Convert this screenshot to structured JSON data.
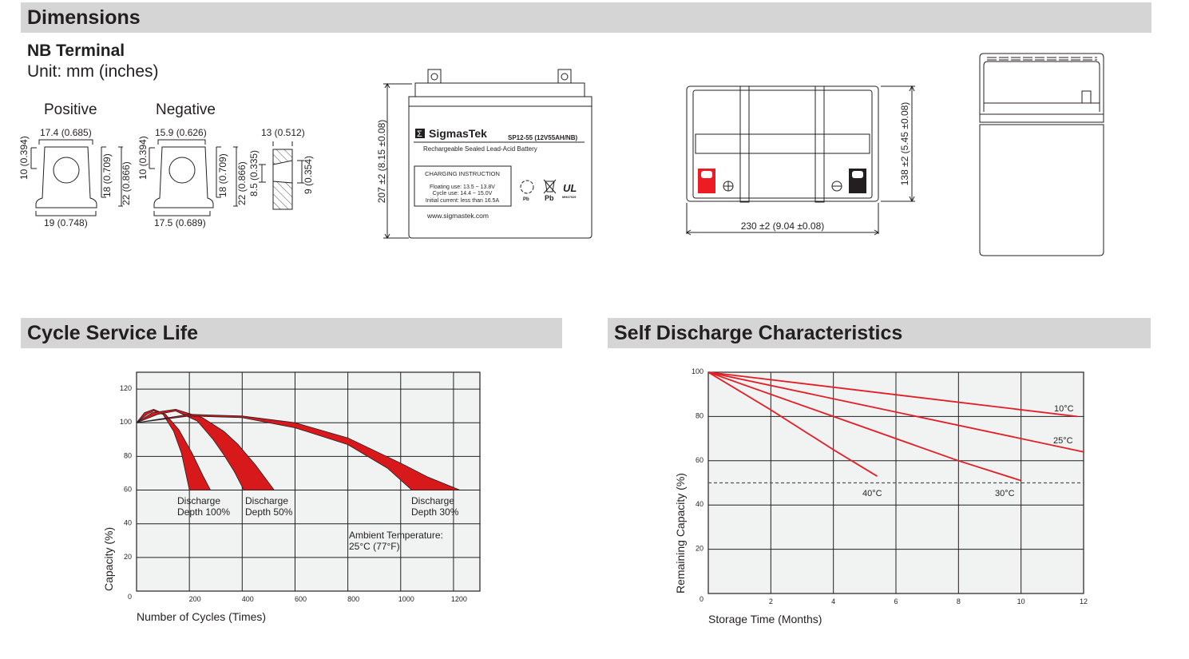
{
  "sections": {
    "dimensions": "Dimensions",
    "cycle": "Cycle Service Life",
    "self": "Self Discharge Characteristics"
  },
  "terminal": {
    "title": "NB Terminal",
    "unit": "Unit: mm (inches)",
    "positive": {
      "label": "Positive",
      "top": "17.4 (0.685)",
      "left": "10 (0.394)",
      "right1": "18 (0.709)",
      "right2": "22 (0.866)",
      "bottom": "19 (0.748)"
    },
    "negative": {
      "label": "Negative",
      "top": "15.9 (0.626)",
      "left": "10 (0.394)",
      "right1": "18 (0.709)",
      "right2": "22 (0.866)",
      "bottom": "17.5 (0.689)"
    },
    "profile": {
      "top": "13 (0.512)",
      "left": "8.5 (0.335)",
      "right": "9 (0.354)"
    }
  },
  "battery": {
    "brand": "SigmasTek",
    "model": "SP12-55 (12V55AH/NB)",
    "description": "Rechargeable Sealed Lead-Acid Battery",
    "charging_title": "CHARGING INSTRUCTION",
    "charging_lines": [
      "Floating use: 13.5 ~ 13.8V",
      "Cycle use: 14.4 ~ 15.0V",
      "Initial current: less than 16.5A"
    ],
    "pb1": "Pb",
    "pb2": "Pb",
    "ul_code": "MH47929",
    "website": "www.sigmastek.com",
    "height_dim": "207 ±2 (8.15 ±0.08)",
    "width_dim": "230 ±2 (9.04 ±0.08)",
    "depth_dim": "138 ±2 (5.45 ±0.08)",
    "positive_color": "#ed1c24",
    "negative_color": "#231f20"
  },
  "chart_data": [
    {
      "type": "area",
      "xlabel": "Number of Cycles (Times)",
      "ylabel": "Capacity (%)",
      "xlim": [
        0,
        1300
      ],
      "ylim": [
        0,
        130
      ],
      "xticks": [
        200,
        400,
        600,
        800,
        1000,
        1200
      ],
      "yticks": [
        0,
        20,
        40,
        60,
        80,
        100,
        120
      ],
      "grid": true,
      "color": "#d7191c",
      "series": [
        {
          "name": "Discharge Depth 100%",
          "upper": [
            [
              0,
              100
            ],
            [
              30,
              106
            ],
            [
              65,
              108
            ],
            [
              110,
              105
            ],
            [
              160,
              96
            ],
            [
              210,
              82
            ],
            [
              250,
              69
            ],
            [
              280,
              60
            ]
          ],
          "lower": [
            [
              0,
              100
            ],
            [
              40,
              105
            ],
            [
              65,
              107
            ],
            [
              100,
              105
            ],
            [
              140,
              95
            ],
            [
              170,
              82
            ],
            [
              200,
              60
            ]
          ]
        },
        {
          "name": "Discharge Depth 50%",
          "upper": [
            [
              0,
              100
            ],
            [
              60,
              106
            ],
            [
              148,
              108
            ],
            [
              250,
              103
            ],
            [
              330,
              95
            ],
            [
              385,
              87
            ],
            [
              450,
              75
            ],
            [
              521,
              60
            ]
          ],
          "lower": [
            [
              0,
              100
            ],
            [
              80,
              105
            ],
            [
              148,
              107
            ],
            [
              230,
              101
            ],
            [
              290,
              90
            ],
            [
              330,
              81
            ],
            [
              370,
              71
            ],
            [
              406,
              60
            ]
          ]
        },
        {
          "name": "Discharge Depth 30%",
          "upper": [
            [
              0,
              100
            ],
            [
              200,
              105
            ],
            [
              400,
              104
            ],
            [
              600,
              100
            ],
            [
              800,
              91
            ],
            [
              1000,
              76
            ],
            [
              1100,
              68
            ],
            [
              1224,
              60
            ]
          ],
          "lower": [
            [
              0,
              100
            ],
            [
              200,
              104
            ],
            [
              400,
              103
            ],
            [
              600,
              97
            ],
            [
              800,
              87
            ],
            [
              950,
              73
            ],
            [
              1042,
              60
            ]
          ]
        }
      ],
      "labels": [
        {
          "lines": [
            "Discharge",
            "Depth 100%"
          ]
        },
        {
          "lines": [
            "Discharge",
            "Depth 50%"
          ]
        },
        {
          "lines": [
            "Discharge",
            "Depth 30%"
          ]
        }
      ],
      "annotation": [
        "Ambient Temperature:",
        "25°C (77°F)"
      ]
    },
    {
      "type": "line",
      "xlabel": "Storage Time (Months)",
      "ylabel": "Remaining Capacity (%)",
      "xlim": [
        0,
        12
      ],
      "ylim": [
        0,
        100
      ],
      "xticks": [
        2,
        4,
        6,
        8,
        10,
        12
      ],
      "yticks": [
        0,
        20,
        40,
        60,
        80,
        100
      ],
      "grid": true,
      "color": "#e31e24",
      "reference_line": 50,
      "series": [
        {
          "name": "10°C",
          "points": [
            [
              0,
              100
            ],
            [
              11.8,
              80
            ]
          ]
        },
        {
          "name": "25°C",
          "points": [
            [
              0,
              100
            ],
            [
              12,
              64
            ]
          ]
        },
        {
          "name": "30°C",
          "points": [
            [
              0,
              100
            ],
            [
              4,
              80
            ],
            [
              8,
              60
            ],
            [
              10,
              51
            ]
          ]
        },
        {
          "name": "40°C",
          "points": [
            [
              0,
              100
            ],
            [
              2,
              83
            ],
            [
              4,
              65
            ],
            [
              5.4,
              53
            ]
          ]
        }
      ]
    }
  ]
}
